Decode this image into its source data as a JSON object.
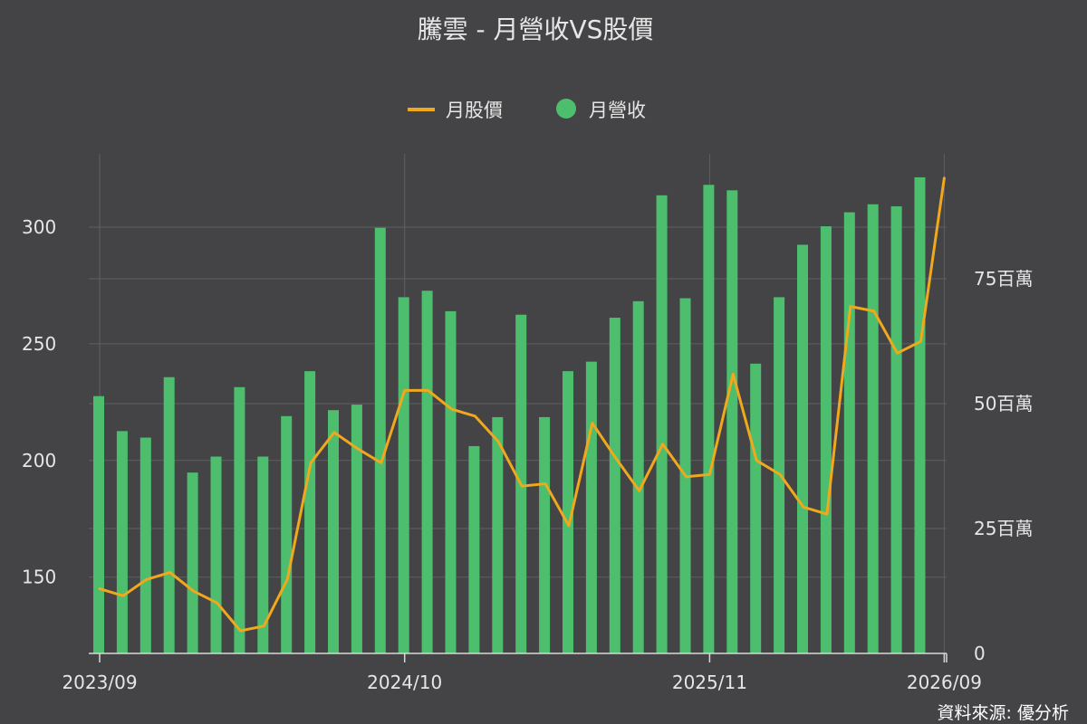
{
  "chart_data": {
    "type": "bar",
    "title": "騰雲 - 月營收VS股價",
    "source": "資料來源: 優分析",
    "legend": {
      "placement": "top-center",
      "items": [
        {
          "name": "月股價",
          "kind": "line",
          "color": "#f0a81c"
        },
        {
          "name": "月營收",
          "kind": "dot",
          "color": "#4dbd6e"
        }
      ]
    },
    "colors": {
      "background": "#444447",
      "bar": "#4dbd6e",
      "line": "#f0a81c"
    },
    "grid": true,
    "x": [
      "2023/09",
      "2023/10",
      "2023/11",
      "2023/12",
      "2024/01",
      "2024/02",
      "2024/03",
      "2024/04",
      "2024/05",
      "2024/06",
      "2024/07",
      "2024/08",
      "2024/09",
      "2024/10",
      "2024/11",
      "2024/12",
      "2025/01",
      "2025/02",
      "2025/03",
      "2025/04",
      "2025/05",
      "2025/06",
      "2025/07",
      "2025/08",
      "2025/09",
      "2025/10",
      "2025/11",
      "2025/12",
      "2026/01",
      "2026/02",
      "2026/03",
      "2026/04",
      "2026/05",
      "2026/06",
      "2026/07",
      "2026/08",
      "2026/09"
    ],
    "x_ticks": [
      "2023/09",
      "2024/10",
      "2025/11",
      "2026/09"
    ],
    "y_left": {
      "ticks": [
        150,
        200,
        250,
        300
      ],
      "range": [
        117.3,
        331.4
      ]
    },
    "y_right": {
      "ticks": [
        0,
        25,
        50,
        75
      ],
      "tick_suffix": "百萬",
      "range": [
        0,
        100
      ]
    },
    "series": [
      {
        "name": "月營收",
        "type": "bar",
        "axis": "right",
        "values": [
          51.5,
          44.5,
          43.2,
          55.3,
          36.2,
          39.4,
          53.3,
          39.4,
          47.5,
          56.5,
          48.7,
          49.8,
          85.2,
          71.3,
          72.6,
          68.5,
          41.5,
          47.3,
          67.8,
          47.3,
          56.5,
          58.4,
          67.2,
          70.5,
          91.7,
          71.1,
          93.8,
          92.7,
          58.0,
          71.3,
          81.8,
          85.5,
          88.3,
          89.9,
          89.5,
          95.3,
          0
        ],
        "color": "#4dbd6e"
      },
      {
        "name": "月股價",
        "type": "line",
        "axis": "left",
        "values": [
          145,
          142,
          149,
          152,
          144,
          139,
          127,
          129,
          149,
          199,
          212,
          205,
          199,
          230,
          230,
          222,
          219,
          208,
          189,
          190,
          172,
          216,
          201,
          187,
          207,
          193,
          194,
          237,
          200,
          194,
          180,
          177,
          266,
          264,
          246,
          251,
          321
        ],
        "color": "#f0a81c"
      }
    ]
  }
}
